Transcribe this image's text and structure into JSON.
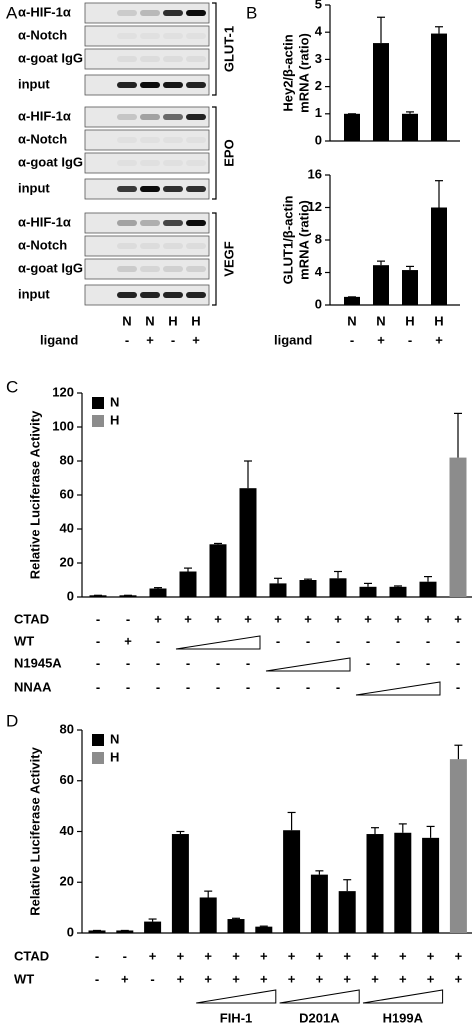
{
  "panel_labels": [
    "A",
    "B",
    "C",
    "D"
  ],
  "panel_a": {
    "groups": [
      {
        "gene": "GLUT-1",
        "rows": [
          "α-HIF-1α",
          "α-Notch",
          "α-goat IgG",
          "input"
        ]
      },
      {
        "gene": "EPO",
        "rows": [
          "α-HIF-1α",
          "α-Notch",
          "α-goat IgG",
          "input"
        ]
      },
      {
        "gene": "VEGF",
        "rows": [
          "α-HIF-1α",
          "α-Notch",
          "α-goat IgG",
          "input"
        ]
      }
    ],
    "lanes": [
      "N",
      "N",
      "H",
      "H"
    ],
    "ligand": {
      "label": "ligand",
      "cells": [
        "-",
        "+",
        "-",
        "+"
      ]
    }
  },
  "chart_data": [
    {
      "type": "bar",
      "ylabel": [
        "Hey2/β-actin",
        "mRNA (ratio)"
      ],
      "series": [
        {
          "color": "#000000",
          "values": [
            1,
            3.6,
            1,
            3.95
          ],
          "errors": [
            0,
            0.95,
            0.07,
            0.25
          ]
        }
      ],
      "ylim": [
        0,
        5
      ],
      "yticks": [
        0,
        1,
        2,
        3,
        4,
        5
      ]
    },
    {
      "type": "bar",
      "ylabel": [
        "GLUT1/β-actin",
        "mRNA (ratio)"
      ],
      "categories": [
        "N",
        "N",
        "H",
        "H"
      ],
      "series": [
        {
          "color": "#000000",
          "values": [
            1,
            4.9,
            4.3,
            12
          ],
          "errors": [
            0,
            0.5,
            0.45,
            3.3
          ]
        }
      ],
      "ylim": [
        0,
        16
      ],
      "yticks": [
        0,
        4,
        8,
        12,
        16
      ],
      "conditions": [
        {
          "label": "ligand",
          "cells": [
            "-",
            "+",
            "-",
            "+"
          ]
        }
      ]
    },
    {
      "type": "bar",
      "ylabel": [
        "Relative Luciferase Activity"
      ],
      "series": [
        {
          "name": "N",
          "color": "#000000",
          "values": [
            1,
            1,
            5,
            15,
            31,
            64,
            8,
            10,
            11,
            6,
            6,
            9,
            null
          ],
          "errors": [
            0,
            0,
            0.5,
            2,
            0.5,
            16,
            3,
            0.5,
            4,
            2,
            0.5,
            3,
            null
          ]
        },
        {
          "name": "H",
          "color": "#8c8c8c",
          "values": [
            null,
            null,
            null,
            null,
            null,
            null,
            null,
            null,
            null,
            null,
            null,
            null,
            82
          ],
          "errors": [
            null,
            null,
            null,
            null,
            null,
            null,
            null,
            null,
            null,
            null,
            null,
            null,
            26
          ]
        }
      ],
      "ylim": [
        0,
        120
      ],
      "yticks": [
        0,
        20,
        40,
        60,
        80,
        100,
        120
      ],
      "conditions": [
        {
          "label": "CTAD",
          "cells": [
            "-",
            "-",
            "+",
            "+",
            "+",
            "+",
            "+",
            "+",
            "+",
            "+",
            "+",
            "+",
            "+"
          ]
        },
        {
          "label": "WT",
          "cells": [
            "-",
            "+",
            "-",
            null,
            null,
            null,
            "-",
            "-",
            "-",
            "-",
            "-",
            "-",
            "-"
          ]
        },
        {
          "label": "N1945A",
          "cells": [
            "-",
            "-",
            "-",
            "-",
            "-",
            "-",
            null,
            null,
            null,
            "-",
            "-",
            "-",
            "-"
          ]
        },
        {
          "label": "NNAA",
          "cells": [
            "-",
            "-",
            "-",
            "-",
            "-",
            "-",
            "-",
            "-",
            "-",
            null,
            null,
            null,
            "-"
          ]
        }
      ]
    },
    {
      "type": "bar",
      "ylabel": [
        "Relative Luciferase Activity"
      ],
      "series": [
        {
          "name": "N",
          "color": "#000000",
          "values": [
            1,
            1,
            4.5,
            39,
            14,
            5.5,
            2.5,
            40.5,
            23,
            16.5,
            39,
            39.5,
            37.5,
            null
          ],
          "errors": [
            0,
            0,
            1,
            1,
            2.5,
            0.3,
            0.2,
            7,
            1.5,
            4.5,
            2.5,
            3.5,
            4.5,
            null
          ]
        },
        {
          "name": "H",
          "color": "#8c8c8c",
          "values": [
            null,
            null,
            null,
            null,
            null,
            null,
            null,
            null,
            null,
            null,
            null,
            null,
            null,
            68.5
          ],
          "errors": [
            null,
            null,
            null,
            null,
            null,
            null,
            null,
            null,
            null,
            null,
            null,
            null,
            null,
            5.5
          ]
        }
      ],
      "ylim": [
        0,
        80
      ],
      "yticks": [
        0,
        20,
        40,
        60,
        80
      ],
      "conditions": [
        {
          "label": "CTAD",
          "cells": [
            "-",
            "-",
            "+",
            "+",
            "+",
            "+",
            "+",
            "+",
            "+",
            "+",
            "+",
            "+",
            "+",
            "+"
          ]
        },
        {
          "label": "WT",
          "cells": [
            "-",
            "+",
            "-",
            "+",
            "+",
            "+",
            "+",
            "+",
            "+",
            "+",
            "+",
            "+",
            "+",
            "+"
          ]
        }
      ],
      "dose_groups": [
        {
          "label": "FIH-1",
          "from": 4,
          "to": 6
        },
        {
          "label": "D201A",
          "from": 7,
          "to": 9
        },
        {
          "label": "H199A",
          "from": 10,
          "to": 12
        }
      ]
    }
  ]
}
